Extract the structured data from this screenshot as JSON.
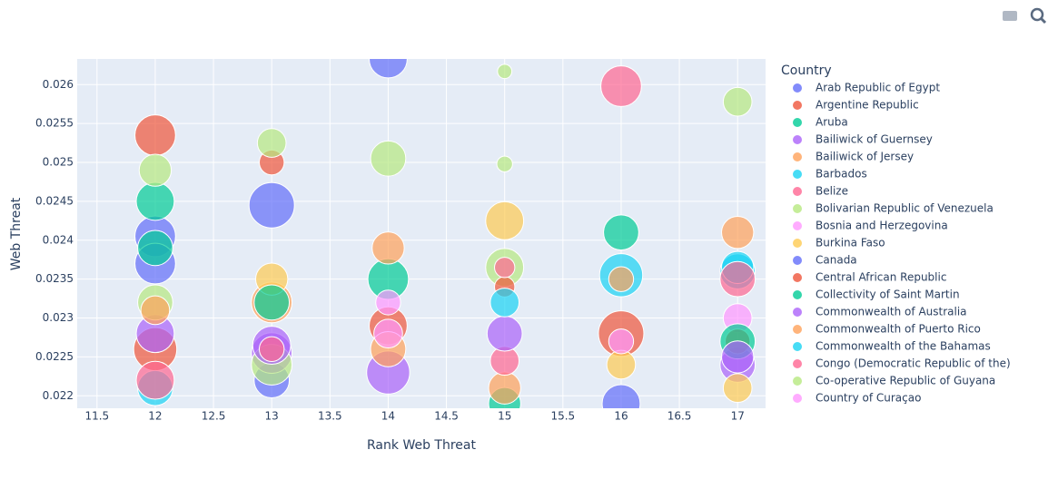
{
  "chart_data": {
    "type": "scatter",
    "x_label": "Rank Web Threat",
    "y_label": "Web Threat",
    "legend_title": "Country",
    "xlim": [
      11.33,
      17.24
    ],
    "ylim": [
      0.02184,
      0.02633
    ],
    "xticks": [
      11.5,
      12,
      12.5,
      13,
      13.5,
      14,
      14.5,
      15,
      15.5,
      16,
      16.5,
      17
    ],
    "yticks": [
      0.022,
      0.0225,
      0.023,
      0.0235,
      0.024,
      0.0245,
      0.025,
      0.0255,
      0.026
    ],
    "grid": true,
    "legend": "right",
    "series": [
      {
        "name": "Arab Republic of Egypt",
        "color": "#636efa",
        "x": [
          12,
          13,
          16
        ],
        "y": [
          0.02405,
          0.0222,
          0.0219
        ],
        "size": [
          80,
          60,
          70
        ]
      },
      {
        "name": "Argentine Republic",
        "color": "#EF553B",
        "x": [
          12,
          14,
          16
        ],
        "y": [
          0.0226,
          0.0229,
          0.0228
        ],
        "size": [
          90,
          70,
          100
        ]
      },
      {
        "name": "Aruba",
        "color": "#00cc96",
        "x": [
          12,
          14,
          16,
          15
        ],
        "y": [
          0.0245,
          0.0235,
          0.0241,
          0.0219
        ],
        "size": [
          70,
          80,
          60,
          50
        ]
      },
      {
        "name": "Bailiwick of Guernsey",
        "color": "#ab63fa",
        "x": [
          12,
          13,
          14,
          17
        ],
        "y": [
          0.0228,
          0.02255,
          0.0223,
          0.0224
        ],
        "size": [
          70,
          80,
          90,
          60
        ]
      },
      {
        "name": "Bailiwick of Jersey",
        "color": "#FFA15A",
        "x": [
          13,
          15,
          17,
          14
        ],
        "y": [
          0.0232,
          0.0221,
          0.0241,
          0.0226
        ],
        "size": [
          80,
          50,
          50,
          60
        ]
      },
      {
        "name": "Barbados",
        "color": "#19d3f3",
        "x": [
          16,
          17,
          12
        ],
        "y": [
          0.02355,
          0.0236,
          0.0221
        ],
        "size": [
          90,
          60,
          60
        ]
      },
      {
        "name": "Belize",
        "color": "#FF6692",
        "x": [
          16,
          12,
          15
        ],
        "y": [
          0.02598,
          0.0222,
          0.02245
        ],
        "size": [
          80,
          70,
          40
        ]
      },
      {
        "name": "Bolivarian Republic of Venezuela",
        "color": "#B6E880",
        "x": [
          13,
          15,
          12
        ],
        "y": [
          0.0224,
          0.02365,
          0.0232
        ],
        "size": [
          80,
          70,
          60
        ]
      },
      {
        "name": "Bosnia and Herzegovina",
        "color": "#FF97FF",
        "x": [
          14,
          17
        ],
        "y": [
          0.0228,
          0.023
        ],
        "size": [
          40,
          40
        ]
      },
      {
        "name": "Burkina Faso",
        "color": "#FECB52",
        "x": [
          15,
          13,
          16,
          17
        ],
        "y": [
          0.02425,
          0.0235,
          0.0224,
          0.0221
        ],
        "size": [
          70,
          50,
          40,
          40
        ]
      },
      {
        "name": "Canada",
        "color": "#636efa",
        "x": [
          14,
          13,
          12
        ],
        "y": [
          0.02633,
          0.02445,
          0.0237
        ],
        "size": [
          70,
          100,
          80
        ]
      },
      {
        "name": "Central African Republic",
        "color": "#EF553B",
        "x": [
          12,
          13,
          15,
          17
        ],
        "y": [
          0.02535,
          0.025,
          0.0234,
          0.0227
        ],
        "size": [
          80,
          30,
          20,
          30
        ]
      },
      {
        "name": "Collectivity of Saint Martin",
        "color": "#00cc96",
        "x": [
          13,
          17,
          12
        ],
        "y": [
          0.0232,
          0.0227,
          0.0239
        ],
        "size": [
          60,
          60,
          60
        ]
      },
      {
        "name": "Commonwealth of Australia",
        "color": "#ab63fa",
        "x": [
          13,
          15,
          17
        ],
        "y": [
          0.02265,
          0.0228,
          0.0225
        ],
        "size": [
          70,
          60,
          50
        ]
      },
      {
        "name": "Commonwealth of Puerto Rico",
        "color": "#FFA15A",
        "x": [
          12,
          14,
          16
        ],
        "y": [
          0.0231,
          0.0239,
          0.0235
        ],
        "size": [
          40,
          50,
          30
        ]
      },
      {
        "name": "Commonwealth of the Bahamas",
        "color": "#19d3f3",
        "x": [
          17,
          15
        ],
        "y": [
          0.02365,
          0.0232
        ],
        "size": [
          50,
          40
        ]
      },
      {
        "name": "Congo (Democratic Republic of the)",
        "color": "#FF6692",
        "x": [
          15,
          17,
          13
        ],
        "y": [
          0.02365,
          0.0235,
          0.0226
        ],
        "size": [
          20,
          60,
          30
        ]
      },
      {
        "name": "Co-operative Republic of Guyana",
        "color": "#B6E880",
        "x": [
          17,
          15,
          15,
          13,
          14,
          12
        ],
        "y": [
          0.02578,
          0.02617,
          0.02498,
          0.02525,
          0.02505,
          0.0249
        ],
        "size": [
          40,
          10,
          12,
          40,
          60,
          50
        ]
      },
      {
        "name": "Country of Curaçao",
        "color": "#FF97FF",
        "x": [
          14,
          16
        ],
        "y": [
          0.0232,
          0.0227
        ],
        "size": [
          30,
          30
        ]
      }
    ]
  }
}
